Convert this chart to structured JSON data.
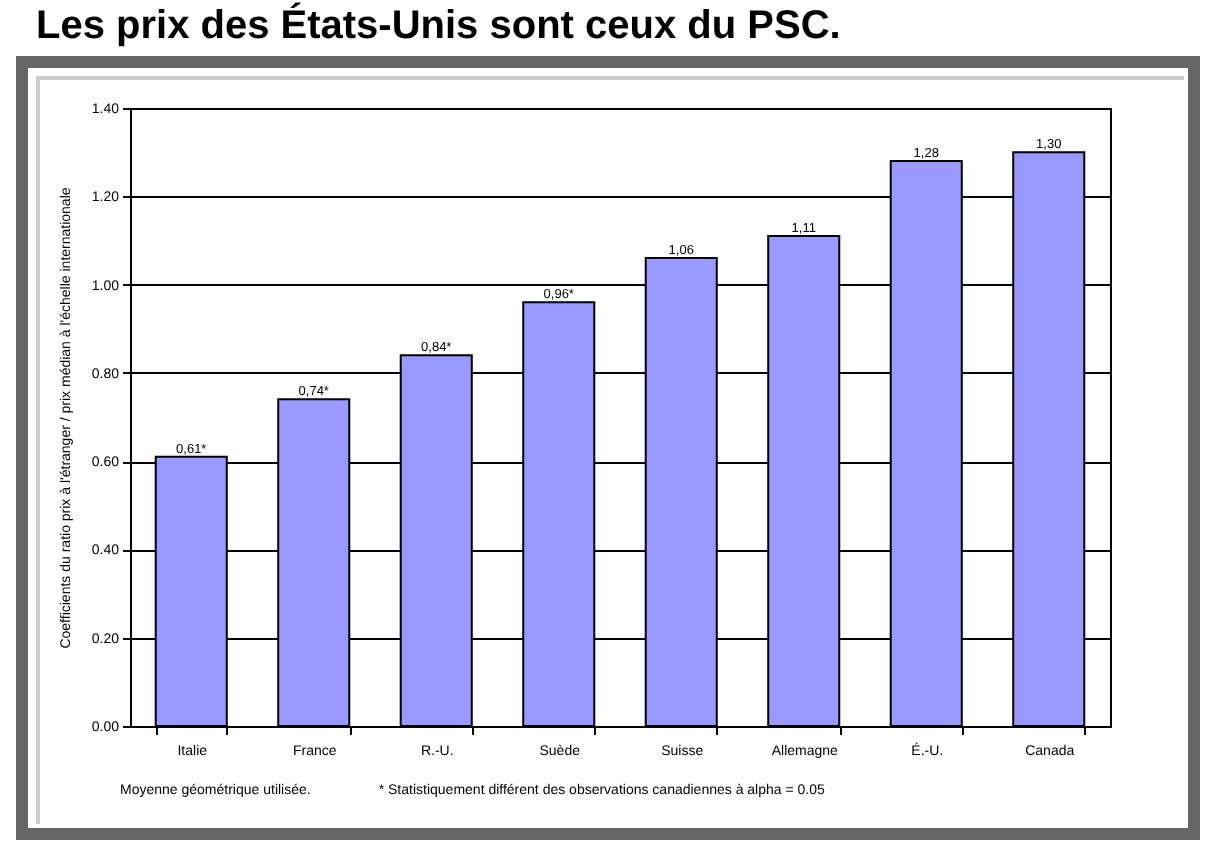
{
  "chart_data": {
    "type": "bar",
    "title": "Les prix des États-Unis sont ceux du PSC.",
    "ylabel": "Coefficients du ratio prix à l'étranger / prix médian à l'échelle internationale",
    "categories": [
      "Italie",
      "France",
      "R.-U.",
      "Suède",
      "Suisse",
      "Allemagne",
      "É.-U.",
      "Canada"
    ],
    "values": [
      0.61,
      0.74,
      0.84,
      0.96,
      1.06,
      1.11,
      1.28,
      1.3
    ],
    "value_labels": [
      "0,61*",
      "0,74*",
      "0,84*",
      "0,96*",
      "1,06",
      "1,11",
      "1,28",
      "1,30"
    ],
    "color": "#9999ff",
    "ylim": [
      0,
      1.4
    ],
    "yticks": [
      {
        "value": 0,
        "label": "0.00"
      },
      {
        "value": 0.2,
        "label": "0.20"
      },
      {
        "value": 0.4,
        "label": "0.40"
      },
      {
        "value": 0.6,
        "label": "0.60"
      },
      {
        "value": 0.8,
        "label": "0.80"
      },
      {
        "value": 1.0,
        "label": "1.00"
      },
      {
        "value": 1.2,
        "label": "1.20"
      },
      {
        "value": 1.4,
        "label": "1.40"
      }
    ],
    "grid": "y",
    "annotations": [
      "Moyenne géométrique utilisée.",
      "* Statistiquement différent des observations canadiennes à alpha = 0.05"
    ]
  }
}
